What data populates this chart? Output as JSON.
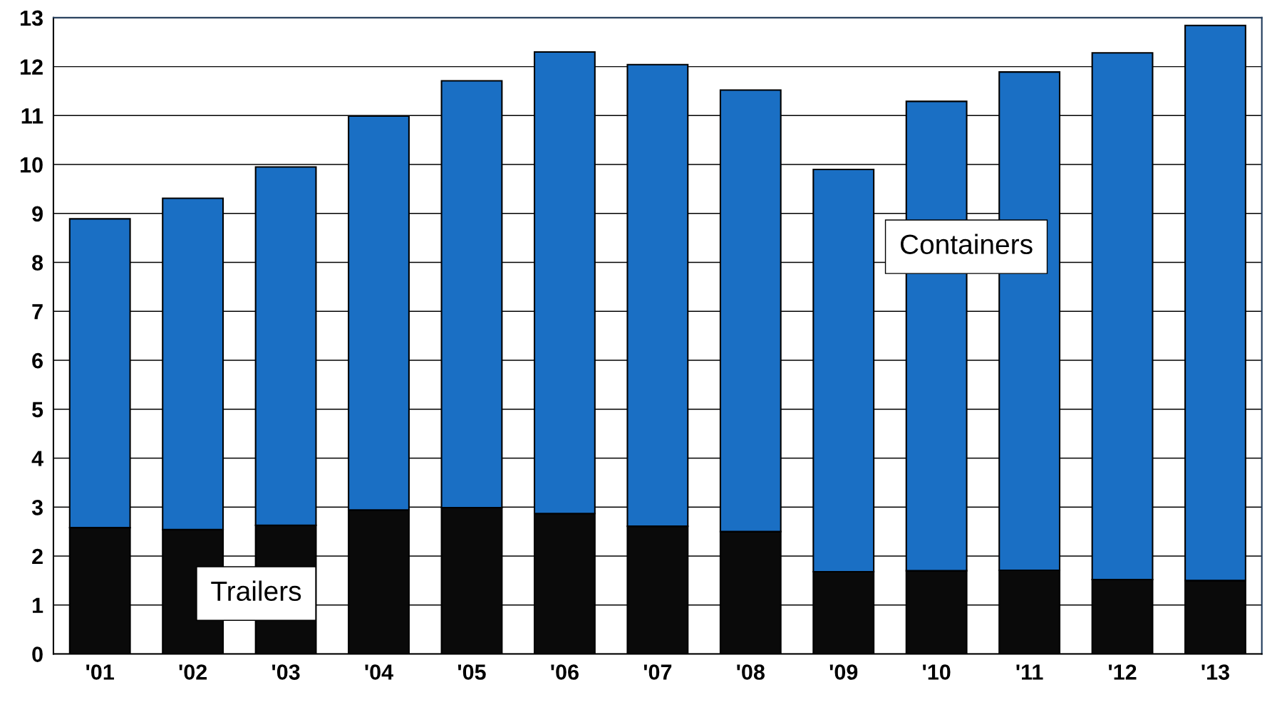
{
  "chart_data": {
    "type": "bar",
    "stacked": true,
    "categories": [
      "'01",
      "'02",
      "'03",
      "'04",
      "'05",
      "'06",
      "'07",
      "'08",
      "'09",
      "'10",
      "'11",
      "'12",
      "'13"
    ],
    "series": [
      {
        "color": "#0a0a0a",
        "values": [
          2.58,
          2.54,
          2.63,
          2.94,
          2.99,
          2.87,
          2.61,
          2.5,
          1.68,
          1.7,
          1.71,
          1.52,
          1.5
        ]
      },
      {
        "color": "#1a6fc4",
        "values": [
          6.31,
          6.77,
          7.32,
          8.05,
          8.72,
          9.43,
          9.43,
          9.02,
          8.22,
          9.59,
          10.18,
          10.76,
          11.34
        ]
      }
    ],
    "annotations": [
      "Trailers",
      "Containers"
    ],
    "ylim": [
      0,
      13
    ],
    "yticks": [
      0,
      1,
      2,
      3,
      4,
      5,
      6,
      7,
      8,
      9,
      10,
      11,
      12,
      13
    ],
    "grid": "y",
    "legend": false
  }
}
